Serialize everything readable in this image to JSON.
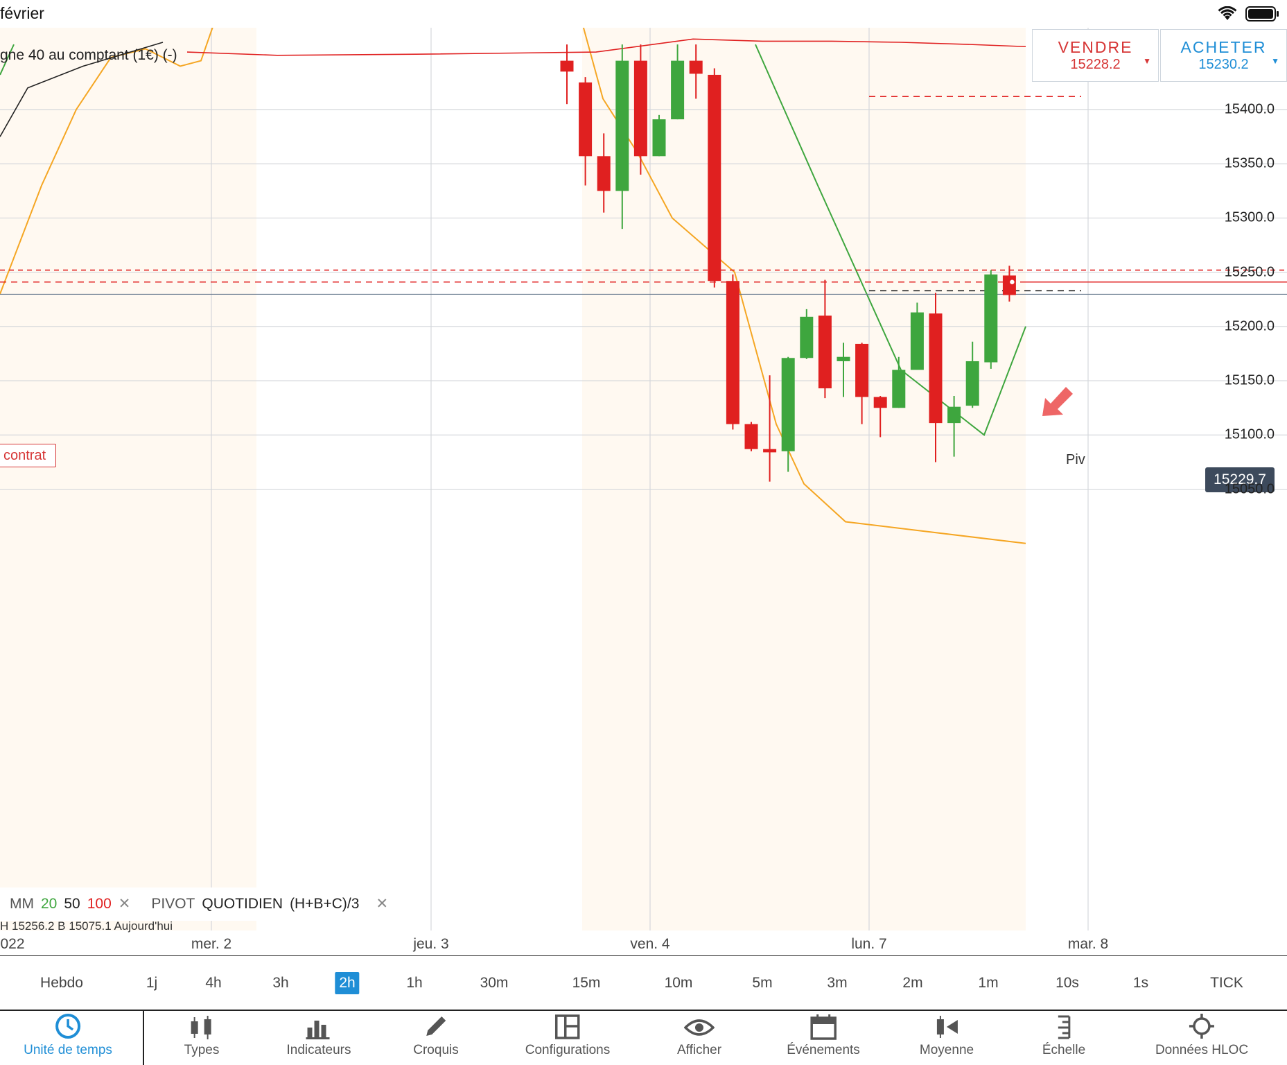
{
  "status": {
    "title": "février"
  },
  "chart_title": "gne 40 au comptant (1€) (-)",
  "trade": {
    "sell_label": "VENDRE",
    "sell_price": "15228.2",
    "buy_label": "ACHETER",
    "buy_price": "15230.2"
  },
  "colors": {
    "up": "#3ea63e",
    "down": "#e02020",
    "accent": "#1f8ed6",
    "ma20": "#3ea63e",
    "ma50": "#f5a623",
    "ma100": "#e02020"
  },
  "current_price": "15229.7",
  "contract_label": "contrat",
  "pivot_label": "Piv",
  "indicator_legend": {
    "mm": "MM",
    "p20": "20",
    "p50": "50",
    "p100": "100",
    "pivot": "PIVOT",
    "pivot_type": "QUOTIDIEN",
    "formula": "(H+B+C)/3",
    "close": "✕"
  },
  "hl_line": "H 15256.2   B 15075.1   Aujourd'hui",
  "chart_data": {
    "type": "candlestick",
    "y_ticks": [
      "15400.0",
      "15350.0",
      "15300.0",
      "15250.0",
      "15200.0",
      "15150.0",
      "15100.0",
      "15050.0"
    ],
    "x_ticks": [
      "022",
      "mer. 2",
      "jeu. 3",
      "ven. 4",
      "lun. 7",
      "mar. 8"
    ],
    "candles": [
      {
        "o": 15445,
        "h": 15460,
        "l": 15405,
        "c": 15435
      },
      {
        "o": 15425,
        "h": 15430,
        "l": 15330,
        "c": 15357
      },
      {
        "o": 15357,
        "h": 15378,
        "l": 15305,
        "c": 15325
      },
      {
        "o": 15325,
        "h": 15460,
        "l": 15290,
        "c": 15445
      },
      {
        "o": 15445,
        "h": 15460,
        "l": 15340,
        "c": 15357
      },
      {
        "o": 15357,
        "h": 15395,
        "l": 15357,
        "c": 15391
      },
      {
        "o": 15391,
        "h": 15460,
        "l": 15391,
        "c": 15445
      },
      {
        "o": 15445,
        "h": 15460,
        "l": 15410,
        "c": 15433
      },
      {
        "o": 15432,
        "h": 15438,
        "l": 15236,
        "c": 15242
      },
      {
        "o": 15242,
        "h": 15248,
        "l": 15105,
        "c": 15110
      },
      {
        "o": 15110,
        "h": 15112,
        "l": 15085,
        "c": 15087
      },
      {
        "o": 15087,
        "h": 15155,
        "l": 15057,
        "c": 15084
      },
      {
        "o": 15085,
        "h": 15172,
        "l": 15066,
        "c": 15171
      },
      {
        "o": 15171,
        "h": 15216,
        "l": 15170,
        "c": 15209
      },
      {
        "o": 15210,
        "h": 15243,
        "l": 15134,
        "c": 15143
      },
      {
        "o": 15168,
        "h": 15185,
        "l": 15135,
        "c": 15172
      },
      {
        "o": 15184,
        "h": 15185,
        "l": 15110,
        "c": 15135
      },
      {
        "o": 15135,
        "h": 15136,
        "l": 15098,
        "c": 15125
      },
      {
        "o": 15125,
        "h": 15172,
        "l": 15125,
        "c": 15160
      },
      {
        "o": 15160,
        "h": 15222,
        "l": 15160,
        "c": 15213
      },
      {
        "o": 15212,
        "h": 15231,
        "l": 15075,
        "c": 15111
      },
      {
        "o": 15111,
        "h": 15136,
        "l": 15080,
        "c": 15126
      },
      {
        "o": 15127,
        "h": 15186,
        "l": 15125,
        "c": 15168
      },
      {
        "o": 15167,
        "h": 15252,
        "l": 15161,
        "c": 15248
      },
      {
        "o": 15247,
        "h": 15256,
        "l": 15223,
        "c": 15229
      }
    ],
    "mm20": [
      [
        1090,
        15460
      ],
      [
        1180,
        15330
      ],
      [
        1300,
        15160
      ],
      [
        1420,
        15100
      ],
      [
        1480,
        15200
      ]
    ],
    "mm50": [
      [
        0,
        15230
      ],
      [
        60,
        15330
      ],
      [
        110,
        15400
      ],
      [
        160,
        15448
      ],
      [
        210,
        15456
      ],
      [
        260,
        15440
      ],
      [
        290,
        15445
      ],
      [
        320,
        15500
      ],
      [
        840,
        15480
      ],
      [
        870,
        15410
      ],
      [
        920,
        15360
      ],
      [
        970,
        15300
      ],
      [
        1060,
        15250
      ],
      [
        1120,
        15110
      ],
      [
        1160,
        15055
      ],
      [
        1220,
        15020
      ],
      [
        1480,
        15000
      ]
    ],
    "mm100": [
      [
        270,
        15453
      ],
      [
        400,
        15450
      ],
      [
        600,
        15451
      ],
      [
        860,
        15453
      ],
      [
        1000,
        15465
      ],
      [
        1100,
        15463
      ],
      [
        1200,
        15463
      ],
      [
        1300,
        15462
      ],
      [
        1400,
        15460
      ],
      [
        1480,
        15458
      ]
    ],
    "levels": {
      "dashed_red_top": 15252,
      "pivot": 15241,
      "current": 15229.7,
      "black_dash": 15233,
      "red_dash_top": 15412
    }
  },
  "timeframes": [
    "Hebdo",
    "1j",
    "4h",
    "3h",
    "2h",
    "1h",
    "30m",
    "15m",
    "10m",
    "5m",
    "3m",
    "2m",
    "1m",
    "10s",
    "1s",
    "TICK"
  ],
  "active_timeframe": "2h",
  "toolbar": [
    {
      "label": "Unité de temps",
      "icon": "clock-icon"
    },
    {
      "label": "Types",
      "icon": "candlestick-icon"
    },
    {
      "label": "Indicateurs",
      "icon": "bar-chart-icon"
    },
    {
      "label": "Croquis",
      "icon": "pencil-icon"
    },
    {
      "label": "Configurations",
      "icon": "layout-icon"
    },
    {
      "label": "Afficher",
      "icon": "eye-icon"
    },
    {
      "label": "Événements",
      "icon": "calendar-icon"
    },
    {
      "label": "Moyenne",
      "icon": "average-icon"
    },
    {
      "label": "Échelle",
      "icon": "scale-icon"
    },
    {
      "label": "Données HLOC",
      "icon": "crosshair-icon"
    }
  ]
}
